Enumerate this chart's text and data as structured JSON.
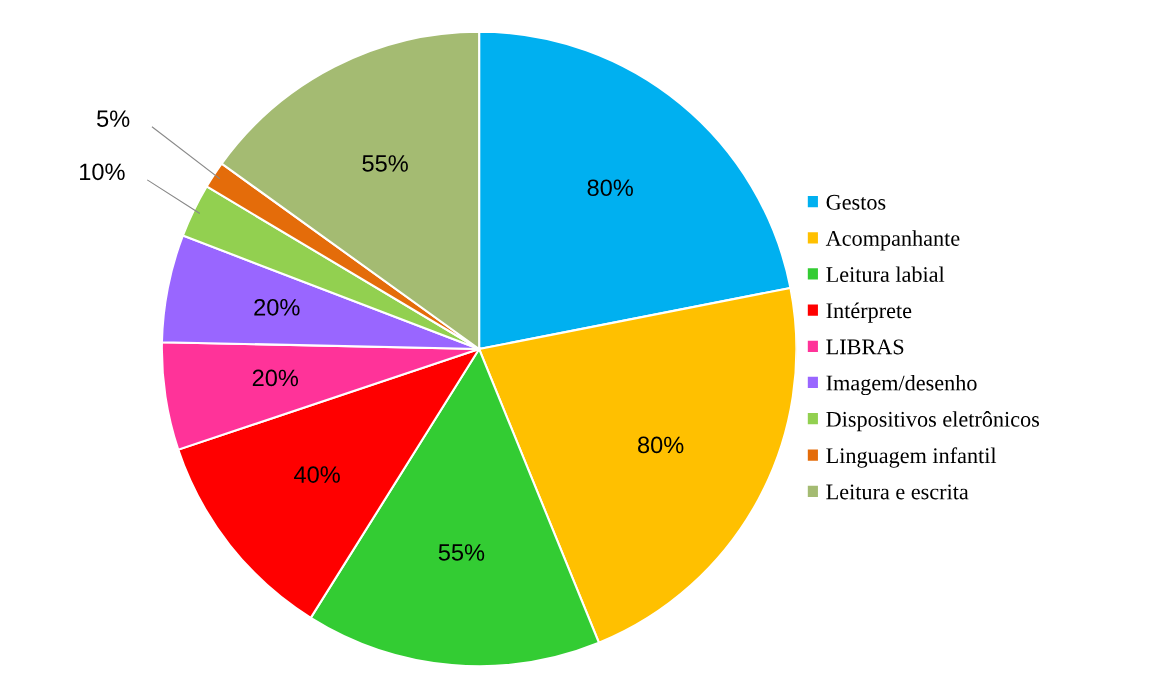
{
  "chart_data": {
    "type": "pie",
    "categories": [
      "Gestos",
      "Acompanhante",
      "Leitura labial",
      "Intérprete",
      "LIBRAS",
      "Imagem/desenho",
      "Dispositivos eletrônicos",
      "Linguagem infantil",
      "Leitura e escrita"
    ],
    "values": [
      80,
      80,
      55,
      40,
      20,
      20,
      10,
      5,
      55
    ],
    "value_labels": [
      "80%",
      "80%",
      "55%",
      "40%",
      "20%",
      "20%",
      "10%",
      "5%",
      "55%"
    ],
    "colors": [
      "#00b0f0",
      "#ffc000",
      "#33cc33",
      "#ff0000",
      "#ff3399",
      "#9966ff",
      "#92d050",
      "#e46c0a",
      "#a4bb72"
    ],
    "legend": "right"
  }
}
